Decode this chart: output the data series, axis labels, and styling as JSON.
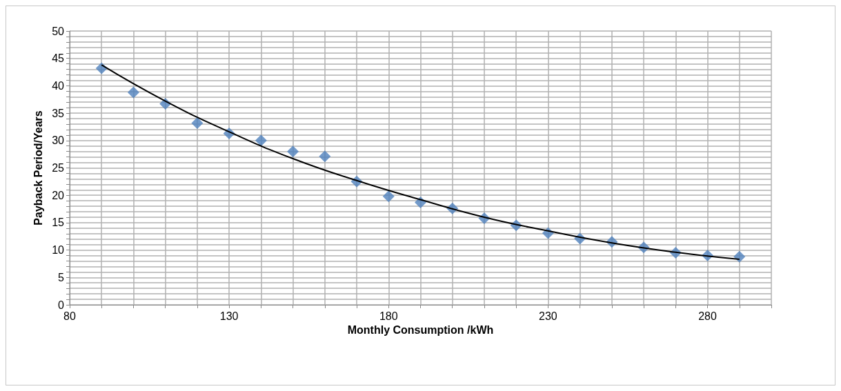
{
  "chart_data": {
    "type": "scatter",
    "xlabel": "Monthly Consumption /kWh",
    "ylabel": "Payback Period/Years",
    "marker": "diamond",
    "grid": true,
    "xlim": [
      80,
      300
    ],
    "ylim": [
      0,
      50
    ],
    "xticks": [
      80,
      {
        "value": 90,
        "label": null
      },
      {
        "value": 100,
        "label": null
      },
      {
        "value": 110,
        "label": null
      },
      {
        "value": 120,
        "label": null
      },
      130,
      {
        "value": 140,
        "label": null
      },
      {
        "value": 150,
        "label": null
      },
      {
        "value": 160,
        "label": null
      },
      {
        "value": 170,
        "label": null
      },
      180,
      {
        "value": 190,
        "label": null
      },
      {
        "value": 200,
        "label": null
      },
      {
        "value": 210,
        "label": null
      },
      {
        "value": 220,
        "label": null
      },
      230,
      {
        "value": 240,
        "label": null
      },
      {
        "value": 250,
        "label": null
      },
      {
        "value": 260,
        "label": null
      },
      {
        "value": 270,
        "label": null
      },
      280,
      {
        "value": 290,
        "label": null
      },
      {
        "value": 300,
        "label": null
      }
    ],
    "yticks": [
      0,
      {
        "value": 1,
        "label": null
      },
      {
        "value": 2,
        "label": null
      },
      {
        "value": 3,
        "label": null
      },
      {
        "value": 4,
        "label": null
      },
      5,
      {
        "value": 6,
        "label": null
      },
      {
        "value": 7,
        "label": null
      },
      {
        "value": 8,
        "label": null
      },
      {
        "value": 9,
        "label": null
      },
      10,
      {
        "value": 11,
        "label": null
      },
      {
        "value": 12,
        "label": null
      },
      {
        "value": 13,
        "label": null
      },
      {
        "value": 14,
        "label": null
      },
      15,
      {
        "value": 16,
        "label": null
      },
      {
        "value": 17,
        "label": null
      },
      {
        "value": 18,
        "label": null
      },
      {
        "value": 19,
        "label": null
      },
      20,
      {
        "value": 21,
        "label": null
      },
      {
        "value": 22,
        "label": null
      },
      {
        "value": 23,
        "label": null
      },
      {
        "value": 24,
        "label": null
      },
      25,
      {
        "value": 26,
        "label": null
      },
      {
        "value": 27,
        "label": null
      },
      {
        "value": 28,
        "label": null
      },
      {
        "value": 29,
        "label": null
      },
      30,
      {
        "value": 31,
        "label": null
      },
      {
        "value": 32,
        "label": null
      },
      {
        "value": 33,
        "label": null
      },
      {
        "value": 34,
        "label": null
      },
      35,
      {
        "value": 36,
        "label": null
      },
      {
        "value": 37,
        "label": null
      },
      {
        "value": 38,
        "label": null
      },
      {
        "value": 39,
        "label": null
      },
      40,
      {
        "value": 41,
        "label": null
      },
      {
        "value": 42,
        "label": null
      },
      {
        "value": 43,
        "label": null
      },
      {
        "value": 44,
        "label": null
      },
      45,
      {
        "value": 46,
        "label": null
      },
      {
        "value": 47,
        "label": null
      },
      {
        "value": 48,
        "label": null
      },
      {
        "value": 49,
        "label": null
      },
      50
    ],
    "series": [
      {
        "color": "#4f81bd",
        "x": [
          90,
          100,
          110,
          120,
          130,
          140,
          150,
          160,
          170,
          180,
          190,
          200,
          210,
          220,
          230,
          240,
          250,
          260,
          270,
          280,
          290
        ],
        "values": [
          43.2,
          38.8,
          36.7,
          33.2,
          31.3,
          30.0,
          28.0,
          27.1,
          22.5,
          19.8,
          18.7,
          17.6,
          15.8,
          14.5,
          13.1,
          12.1,
          11.5,
          10.5,
          9.5,
          9.0,
          8.8
        ]
      },
      {
        "type": "line",
        "color": "#000000",
        "marker": "none",
        "line_style": "solid",
        "x": [
          90,
          110,
          130,
          150,
          170,
          190,
          210,
          230,
          250,
          270,
          290
        ],
        "values": [
          43.8,
          37.2,
          31.6,
          26.7,
          22.7,
          19.2,
          16.0,
          13.5,
          11.3,
          9.6,
          8.3
        ]
      }
    ]
  }
}
